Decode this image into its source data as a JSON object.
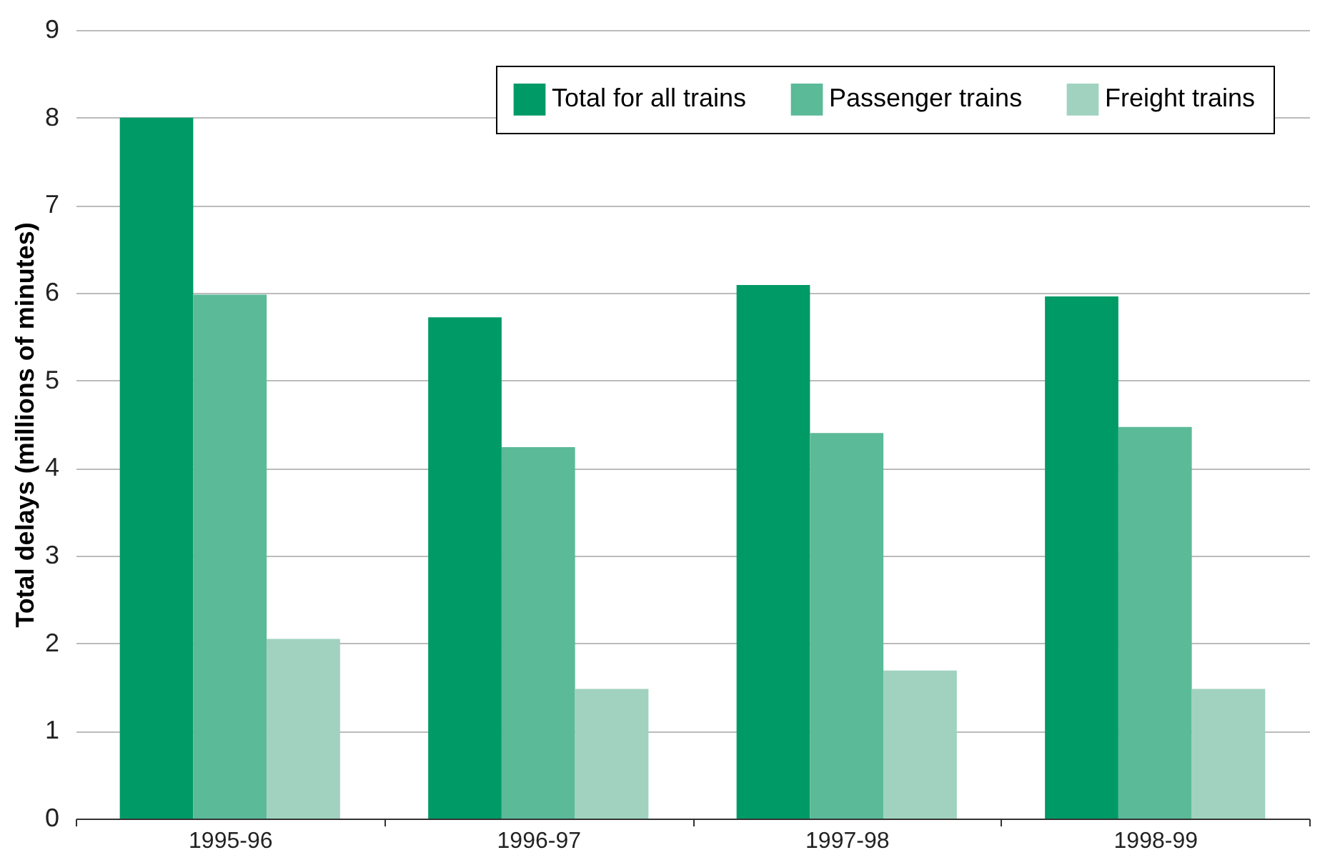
{
  "chart_data": {
    "type": "bar",
    "ylabel": "Total delays (millions of minutes)",
    "categories": [
      "1995-96",
      "1996-97",
      "1997-98",
      "1998-99"
    ],
    "series": [
      {
        "name": "Total for all trains",
        "color": "#009a66",
        "values": [
          8.0,
          5.72,
          6.09,
          5.96
        ]
      },
      {
        "name": "Passenger trains",
        "color": "#5bba98",
        "values": [
          5.98,
          4.24,
          4.4,
          4.47
        ]
      },
      {
        "name": "Freight trains",
        "color": "#a0d2bf",
        "values": [
          2.05,
          1.48,
          1.69,
          1.48
        ]
      }
    ],
    "ylim": [
      0,
      9
    ],
    "yticks": [
      0,
      1,
      2,
      3,
      4,
      5,
      6,
      7,
      8,
      9
    ],
    "grid": "y",
    "legend": "top right"
  }
}
